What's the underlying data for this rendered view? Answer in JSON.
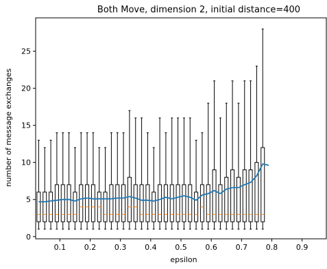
{
  "chart_data": {
    "type": "box",
    "title": "Both Move, dimension 2, initial distance=400",
    "xlabel": "epsilon",
    "ylabel": "number of message exchanges",
    "xlim": [
      0.02,
      0.98
    ],
    "ylim": [
      -0.3,
      29.5
    ],
    "xticks": [
      0.1,
      0.2,
      0.3,
      0.4,
      0.5,
      0.6,
      0.7,
      0.8,
      0.9
    ],
    "xtick_labels": [
      "0.1",
      "0.2",
      "0.3",
      "0.4",
      "0.5",
      "0.6",
      "0.7",
      "0.8",
      "0.9"
    ],
    "yticks": [
      0,
      5,
      10,
      15,
      20,
      25
    ],
    "ytick_labels": [
      "0",
      "5",
      "10",
      "15",
      "20",
      "25"
    ],
    "grid": false,
    "colors": {
      "box": "#000000",
      "median": "#ff7f0e",
      "mean_line": "#1f77b4"
    },
    "boxes": [
      {
        "x": 0.03,
        "min": 1,
        "q1": 2,
        "median": 3,
        "q3": 6,
        "max": 13
      },
      {
        "x": 0.05,
        "min": 1,
        "q1": 2,
        "median": 3,
        "q3": 6,
        "max": 12
      },
      {
        "x": 0.07,
        "min": 1,
        "q1": 2,
        "median": 3,
        "q3": 6,
        "max": 13
      },
      {
        "x": 0.09,
        "min": 1,
        "q1": 2,
        "median": 3,
        "q3": 7,
        "max": 14
      },
      {
        "x": 0.11,
        "min": 1,
        "q1": 2,
        "median": 3,
        "q3": 7,
        "max": 14
      },
      {
        "x": 0.13,
        "min": 1,
        "q1": 2,
        "median": 3,
        "q3": 7,
        "max": 14
      },
      {
        "x": 0.15,
        "min": 1,
        "q1": 2,
        "median": 3,
        "q3": 6,
        "max": 12
      },
      {
        "x": 0.17,
        "min": 1,
        "q1": 2,
        "median": 4,
        "q3": 7,
        "max": 14
      },
      {
        "x": 0.19,
        "min": 1,
        "q1": 2,
        "median": 4,
        "q3": 7,
        "max": 14
      },
      {
        "x": 0.21,
        "min": 1,
        "q1": 2,
        "median": 4,
        "q3": 7,
        "max": 14
      },
      {
        "x": 0.23,
        "min": 1,
        "q1": 2,
        "median": 4,
        "q3": 6,
        "max": 12
      },
      {
        "x": 0.25,
        "min": 1,
        "q1": 2,
        "median": 3,
        "q3": 6,
        "max": 12
      },
      {
        "x": 0.27,
        "min": 1,
        "q1": 2,
        "median": 3,
        "q3": 7,
        "max": 14
      },
      {
        "x": 0.29,
        "min": 1,
        "q1": 2,
        "median": 3,
        "q3": 7,
        "max": 14
      },
      {
        "x": 0.31,
        "min": 1,
        "q1": 2,
        "median": 3,
        "q3": 7,
        "max": 14
      },
      {
        "x": 0.33,
        "min": 1,
        "q1": 2,
        "median": 4,
        "q3": 8,
        "max": 17
      },
      {
        "x": 0.35,
        "min": 1,
        "q1": 2,
        "median": 4,
        "q3": 7,
        "max": 16
      },
      {
        "x": 0.37,
        "min": 1,
        "q1": 2,
        "median": 3,
        "q3": 7,
        "max": 16
      },
      {
        "x": 0.39,
        "min": 1,
        "q1": 2,
        "median": 3,
        "q3": 7,
        "max": 14
      },
      {
        "x": 0.41,
        "min": 1,
        "q1": 2,
        "median": 3,
        "q3": 6,
        "max": 12
      },
      {
        "x": 0.43,
        "min": 1,
        "q1": 2,
        "median": 3,
        "q3": 7,
        "max": 16
      },
      {
        "x": 0.45,
        "min": 1,
        "q1": 2,
        "median": 3,
        "q3": 7,
        "max": 14
      },
      {
        "x": 0.47,
        "min": 1,
        "q1": 2,
        "median": 3,
        "q3": 7,
        "max": 16
      },
      {
        "x": 0.49,
        "min": 1,
        "q1": 2,
        "median": 3,
        "q3": 7,
        "max": 16
      },
      {
        "x": 0.51,
        "min": 1,
        "q1": 2,
        "median": 3,
        "q3": 7,
        "max": 16
      },
      {
        "x": 0.53,
        "min": 1,
        "q1": 2,
        "median": 3,
        "q3": 7,
        "max": 16
      },
      {
        "x": 0.55,
        "min": 1,
        "q1": 2,
        "median": 3,
        "q3": 6,
        "max": 13
      },
      {
        "x": 0.57,
        "min": 1,
        "q1": 2,
        "median": 4,
        "q3": 7,
        "max": 14
      },
      {
        "x": 0.59,
        "min": 1,
        "q1": 2,
        "median": 3,
        "q3": 7,
        "max": 18
      },
      {
        "x": 0.61,
        "min": 1,
        "q1": 2,
        "median": 3,
        "q3": 9,
        "max": 21
      },
      {
        "x": 0.63,
        "min": 1,
        "q1": 2,
        "median": 3,
        "q3": 7,
        "max": 16
      },
      {
        "x": 0.65,
        "min": 1,
        "q1": 2,
        "median": 3,
        "q3": 8,
        "max": 18
      },
      {
        "x": 0.67,
        "min": 1,
        "q1": 2,
        "median": 3,
        "q3": 9,
        "max": 21
      },
      {
        "x": 0.69,
        "min": 1,
        "q1": 2,
        "median": 3,
        "q3": 8,
        "max": 18
      },
      {
        "x": 0.71,
        "min": 1,
        "q1": 2,
        "median": 3,
        "q3": 9,
        "max": 21
      },
      {
        "x": 0.73,
        "min": 1,
        "q1": 2,
        "median": 3,
        "q3": 9,
        "max": 21
      },
      {
        "x": 0.75,
        "min": 1,
        "q1": 2,
        "median": 3,
        "q3": 10,
        "max": 23
      },
      {
        "x": 0.77,
        "min": 1,
        "q1": 2,
        "median": 3,
        "q3": 12,
        "max": 28
      }
    ],
    "mean_line": {
      "x": [
        0.03,
        0.05,
        0.07,
        0.09,
        0.11,
        0.13,
        0.15,
        0.17,
        0.19,
        0.21,
        0.23,
        0.25,
        0.27,
        0.29,
        0.31,
        0.33,
        0.35,
        0.37,
        0.39,
        0.41,
        0.43,
        0.45,
        0.47,
        0.49,
        0.51,
        0.53,
        0.55,
        0.57,
        0.59,
        0.61,
        0.63,
        0.65,
        0.67,
        0.69,
        0.71,
        0.73,
        0.75,
        0.77,
        0.79
      ],
      "y": [
        4.7,
        4.7,
        4.8,
        4.9,
        5.0,
        5.0,
        4.8,
        5.1,
        5.2,
        5.1,
        5.1,
        5.1,
        5.1,
        5.2,
        5.2,
        5.4,
        5.2,
        4.9,
        4.9,
        4.8,
        5.0,
        5.3,
        5.1,
        5.3,
        5.5,
        5.3,
        4.9,
        5.6,
        5.8,
        6.2,
        5.8,
        6.4,
        6.6,
        6.6,
        7.0,
        7.3,
        8.2,
        9.8,
        9.6
      ]
    }
  }
}
